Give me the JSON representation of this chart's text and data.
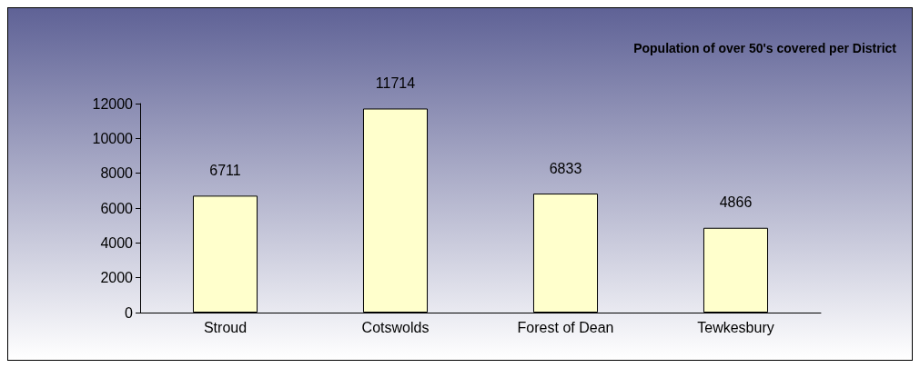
{
  "chart_data": {
    "type": "bar",
    "title": "Population of over 50's covered per District",
    "categories": [
      "Stroud",
      "Cotswolds",
      "Forest of Dean",
      "Tewkesbury"
    ],
    "values": [
      6711,
      11714,
      6833,
      4866
    ],
    "color": "#ffffcc",
    "ylim": [
      0,
      12000
    ],
    "yticks": [
      0,
      2000,
      4000,
      6000,
      8000,
      10000,
      12000
    ],
    "grid": false,
    "data_labels": true
  }
}
